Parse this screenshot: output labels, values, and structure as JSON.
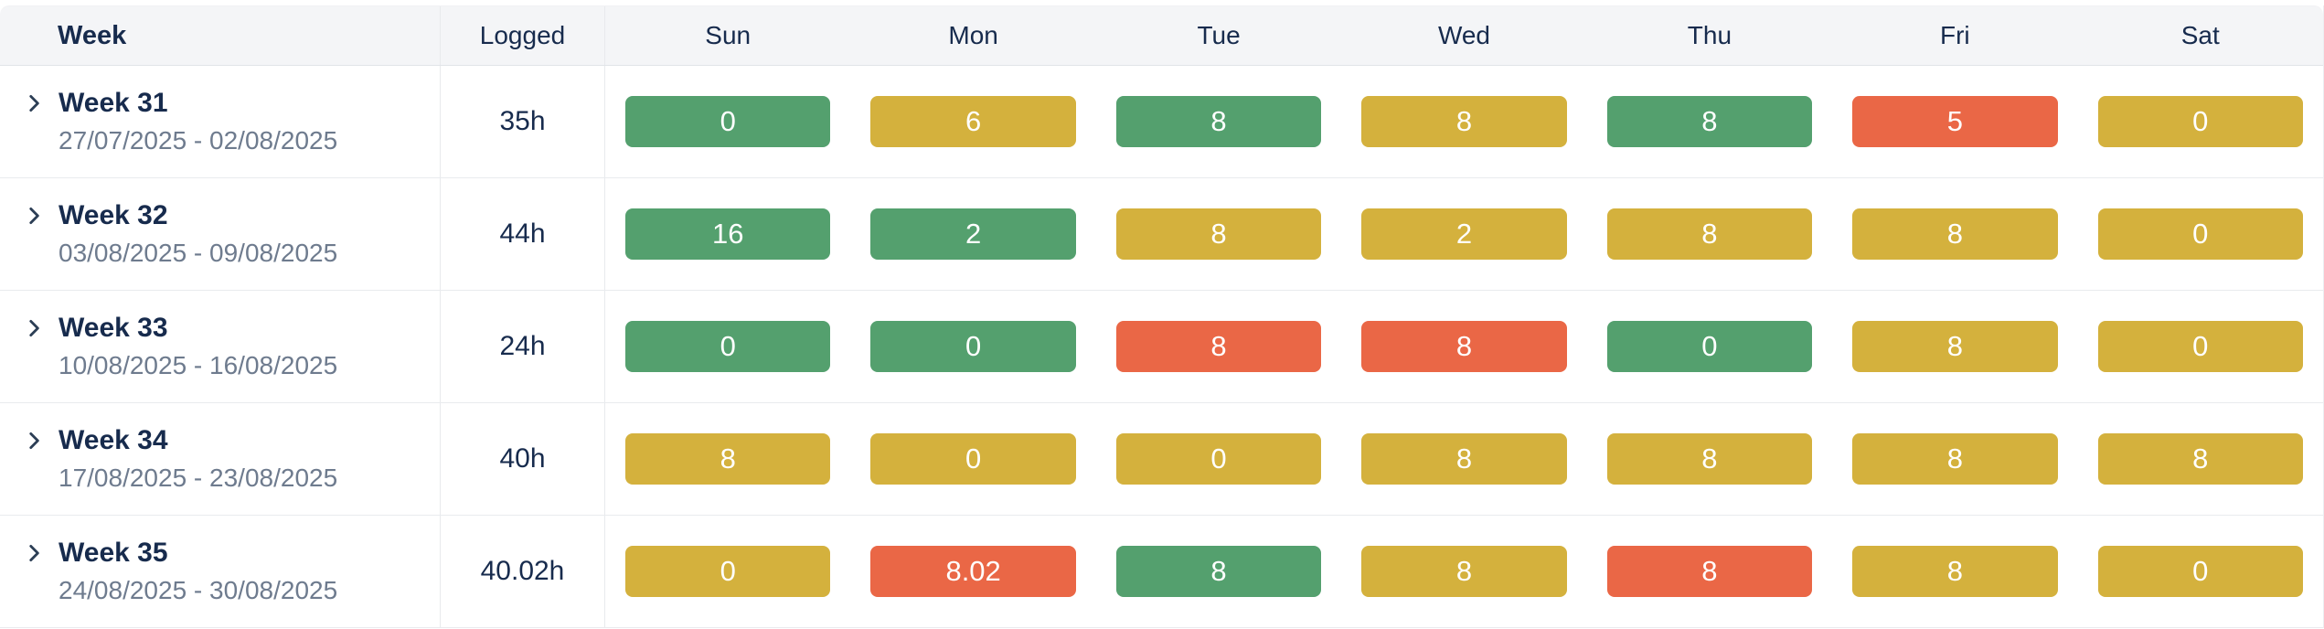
{
  "table": {
    "columns": {
      "week": "Week",
      "logged": "Logged",
      "days": [
        "Sun",
        "Mon",
        "Tue",
        "Wed",
        "Thu",
        "Fri",
        "Sat"
      ]
    },
    "rows": [
      {
        "week": "Week 31",
        "range": "27/07/2025 - 02/08/2025",
        "logged": "35h",
        "days": [
          {
            "value": "0",
            "status": "green"
          },
          {
            "value": "6",
            "status": "yellow"
          },
          {
            "value": "8",
            "status": "green"
          },
          {
            "value": "8",
            "status": "yellow"
          },
          {
            "value": "8",
            "status": "green"
          },
          {
            "value": "5",
            "status": "red"
          },
          {
            "value": "0",
            "status": "yellow"
          }
        ]
      },
      {
        "week": "Week 32",
        "range": "03/08/2025 - 09/08/2025",
        "logged": "44h",
        "days": [
          {
            "value": "16",
            "status": "green"
          },
          {
            "value": "2",
            "status": "green"
          },
          {
            "value": "8",
            "status": "yellow"
          },
          {
            "value": "2",
            "status": "yellow"
          },
          {
            "value": "8",
            "status": "yellow"
          },
          {
            "value": "8",
            "status": "yellow"
          },
          {
            "value": "0",
            "status": "yellow"
          }
        ]
      },
      {
        "week": "Week 33",
        "range": "10/08/2025 - 16/08/2025",
        "logged": "24h",
        "days": [
          {
            "value": "0",
            "status": "green"
          },
          {
            "value": "0",
            "status": "green"
          },
          {
            "value": "8",
            "status": "red"
          },
          {
            "value": "8",
            "status": "red"
          },
          {
            "value": "0",
            "status": "green"
          },
          {
            "value": "8",
            "status": "yellow"
          },
          {
            "value": "0",
            "status": "yellow"
          }
        ]
      },
      {
        "week": "Week 34",
        "range": "17/08/2025 - 23/08/2025",
        "logged": "40h",
        "days": [
          {
            "value": "8",
            "status": "yellow"
          },
          {
            "value": "0",
            "status": "yellow"
          },
          {
            "value": "0",
            "status": "yellow"
          },
          {
            "value": "8",
            "status": "yellow"
          },
          {
            "value": "8",
            "status": "yellow"
          },
          {
            "value": "8",
            "status": "yellow"
          },
          {
            "value": "8",
            "status": "yellow"
          }
        ]
      },
      {
        "week": "Week 35",
        "range": "24/08/2025 - 30/08/2025",
        "logged": "40.02h",
        "days": [
          {
            "value": "0",
            "status": "yellow"
          },
          {
            "value": "8.02",
            "status": "red"
          },
          {
            "value": "8",
            "status": "green"
          },
          {
            "value": "8",
            "status": "yellow"
          },
          {
            "value": "8",
            "status": "red"
          },
          {
            "value": "8",
            "status": "yellow"
          },
          {
            "value": "0",
            "status": "yellow"
          }
        ]
      }
    ]
  },
  "colors": {
    "status_green": "#54a06e",
    "status_yellow": "#d4b13d",
    "status_red": "#ea6746"
  }
}
